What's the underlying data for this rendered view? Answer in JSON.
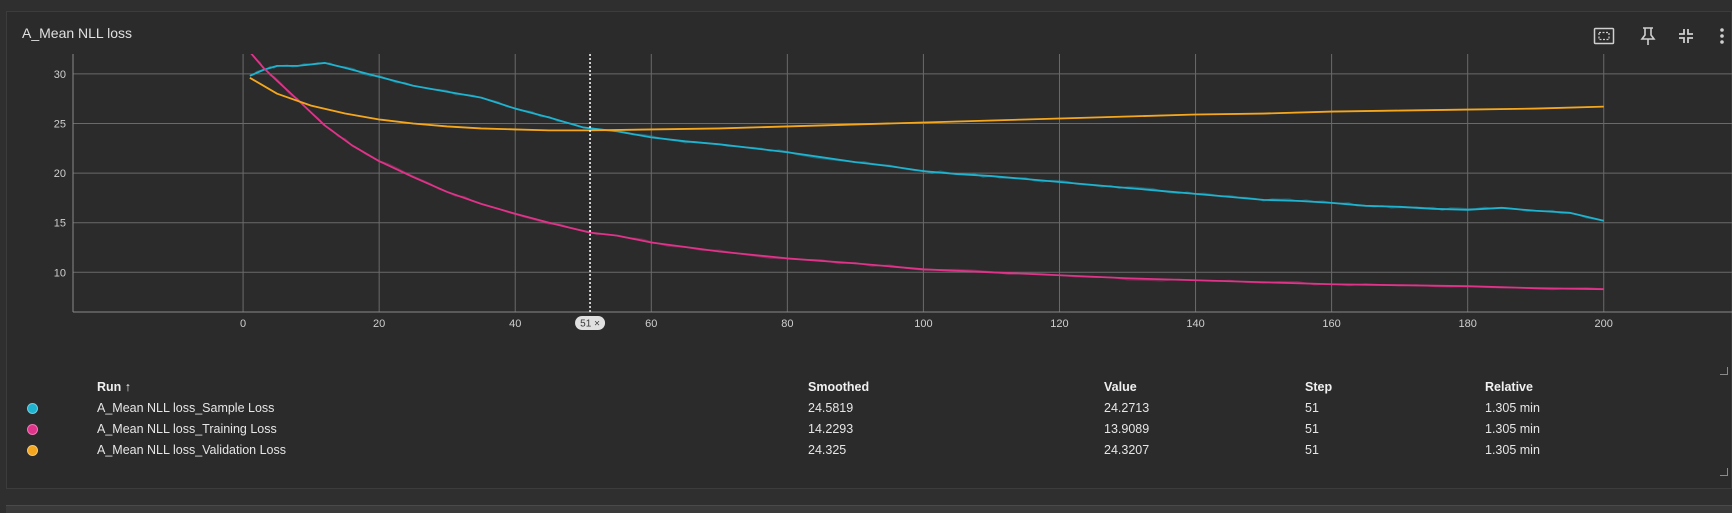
{
  "card": {
    "title": "A_Mean NLL loss"
  },
  "toolbar": {
    "icons": [
      "fit-domain-icon",
      "pin-icon",
      "collapse-icon",
      "more-vertical-icon"
    ]
  },
  "chart_data": {
    "type": "line",
    "title": "",
    "xlabel": "",
    "ylabel": "",
    "xlim": [
      -25,
      219
    ],
    "ylim": [
      6,
      32
    ],
    "x_ticks": [
      "0",
      "20",
      "40",
      "60",
      "80",
      "100",
      "120",
      "140",
      "160",
      "180",
      "200"
    ],
    "x_tick_values": [
      0,
      20,
      40,
      60,
      80,
      100,
      120,
      140,
      160,
      180,
      200
    ],
    "y_ticks": [
      "10",
      "15",
      "20",
      "25",
      "30"
    ],
    "y_tick_values": [
      10,
      15,
      20,
      25,
      30
    ],
    "grid": true,
    "hover_step": 51,
    "hover_label": "51 ×",
    "series": [
      {
        "name": "A_Mean NLL loss_Sample Loss",
        "color": "#1fb3cf",
        "x": [
          1,
          3,
          5,
          8,
          12,
          15,
          20,
          25,
          30,
          35,
          40,
          45,
          50,
          55,
          60,
          65,
          70,
          75,
          80,
          85,
          90,
          95,
          100,
          105,
          110,
          115,
          120,
          125,
          130,
          135,
          140,
          145,
          150,
          155,
          160,
          165,
          170,
          175,
          180,
          185,
          190,
          195,
          200
        ],
        "y": [
          29.8,
          30.4,
          30.8,
          30.8,
          31.1,
          30.6,
          29.7,
          28.8,
          28.2,
          27.6,
          26.5,
          25.6,
          24.6,
          24.2,
          23.6,
          23.2,
          22.9,
          22.5,
          22.1,
          21.6,
          21.1,
          20.7,
          20.2,
          19.9,
          19.7,
          19.4,
          19.1,
          18.8,
          18.5,
          18.2,
          17.9,
          17.6,
          17.3,
          17.2,
          17.0,
          16.7,
          16.6,
          16.4,
          16.3,
          16.5,
          16.2,
          16.0,
          15.2
        ]
      },
      {
        "name": "A_Mean NLL loss_Training Loss",
        "color": "#e0338a",
        "x": [
          1,
          3,
          5,
          8,
          12,
          16,
          20,
          25,
          30,
          35,
          40,
          45,
          51,
          55,
          60,
          70,
          80,
          90,
          100,
          110,
          120,
          130,
          140,
          150,
          160,
          170,
          180,
          190,
          200
        ],
        "y": [
          32.2,
          30.6,
          29.3,
          27.4,
          24.8,
          22.8,
          21.2,
          19.6,
          18.1,
          16.9,
          15.9,
          15.0,
          14.0,
          13.7,
          13.0,
          12.1,
          11.4,
          10.9,
          10.3,
          10.0,
          9.7,
          9.4,
          9.2,
          9.0,
          8.8,
          8.7,
          8.6,
          8.4,
          8.3
        ]
      },
      {
        "name": "A_Mean NLL loss_Validation Loss",
        "color": "#f4a71e",
        "x": [
          1,
          5,
          10,
          15,
          20,
          25,
          30,
          35,
          40,
          45,
          51,
          60,
          70,
          80,
          90,
          100,
          110,
          120,
          130,
          140,
          150,
          160,
          170,
          180,
          190,
          200
        ],
        "y": [
          29.6,
          28.0,
          26.8,
          26.0,
          25.4,
          25.0,
          24.7,
          24.5,
          24.4,
          24.3,
          24.3,
          24.4,
          24.5,
          24.7,
          24.9,
          25.1,
          25.3,
          25.5,
          25.7,
          25.9,
          26.0,
          26.2,
          26.3,
          26.4,
          26.5,
          26.7
        ]
      }
    ]
  },
  "table": {
    "headers": {
      "run": "Run",
      "sort_arrow": "↑",
      "smoothed": "Smoothed",
      "value": "Value",
      "step": "Step",
      "relative": "Relative"
    },
    "rows": [
      {
        "color": "#1fb3cf",
        "run": "A_Mean NLL loss_Sample Loss",
        "smoothed": "24.5819",
        "value": "24.2713",
        "step": "51",
        "relative": "1.305 min"
      },
      {
        "color": "#e0338a",
        "run": "A_Mean NLL loss_Training Loss",
        "smoothed": "14.2293",
        "value": "13.9089",
        "step": "51",
        "relative": "1.305 min"
      },
      {
        "color": "#f4a71e",
        "run": "A_Mean NLL loss_Validation Loss",
        "smoothed": "24.325",
        "value": "24.3207",
        "step": "51",
        "relative": "1.305 min"
      }
    ]
  }
}
